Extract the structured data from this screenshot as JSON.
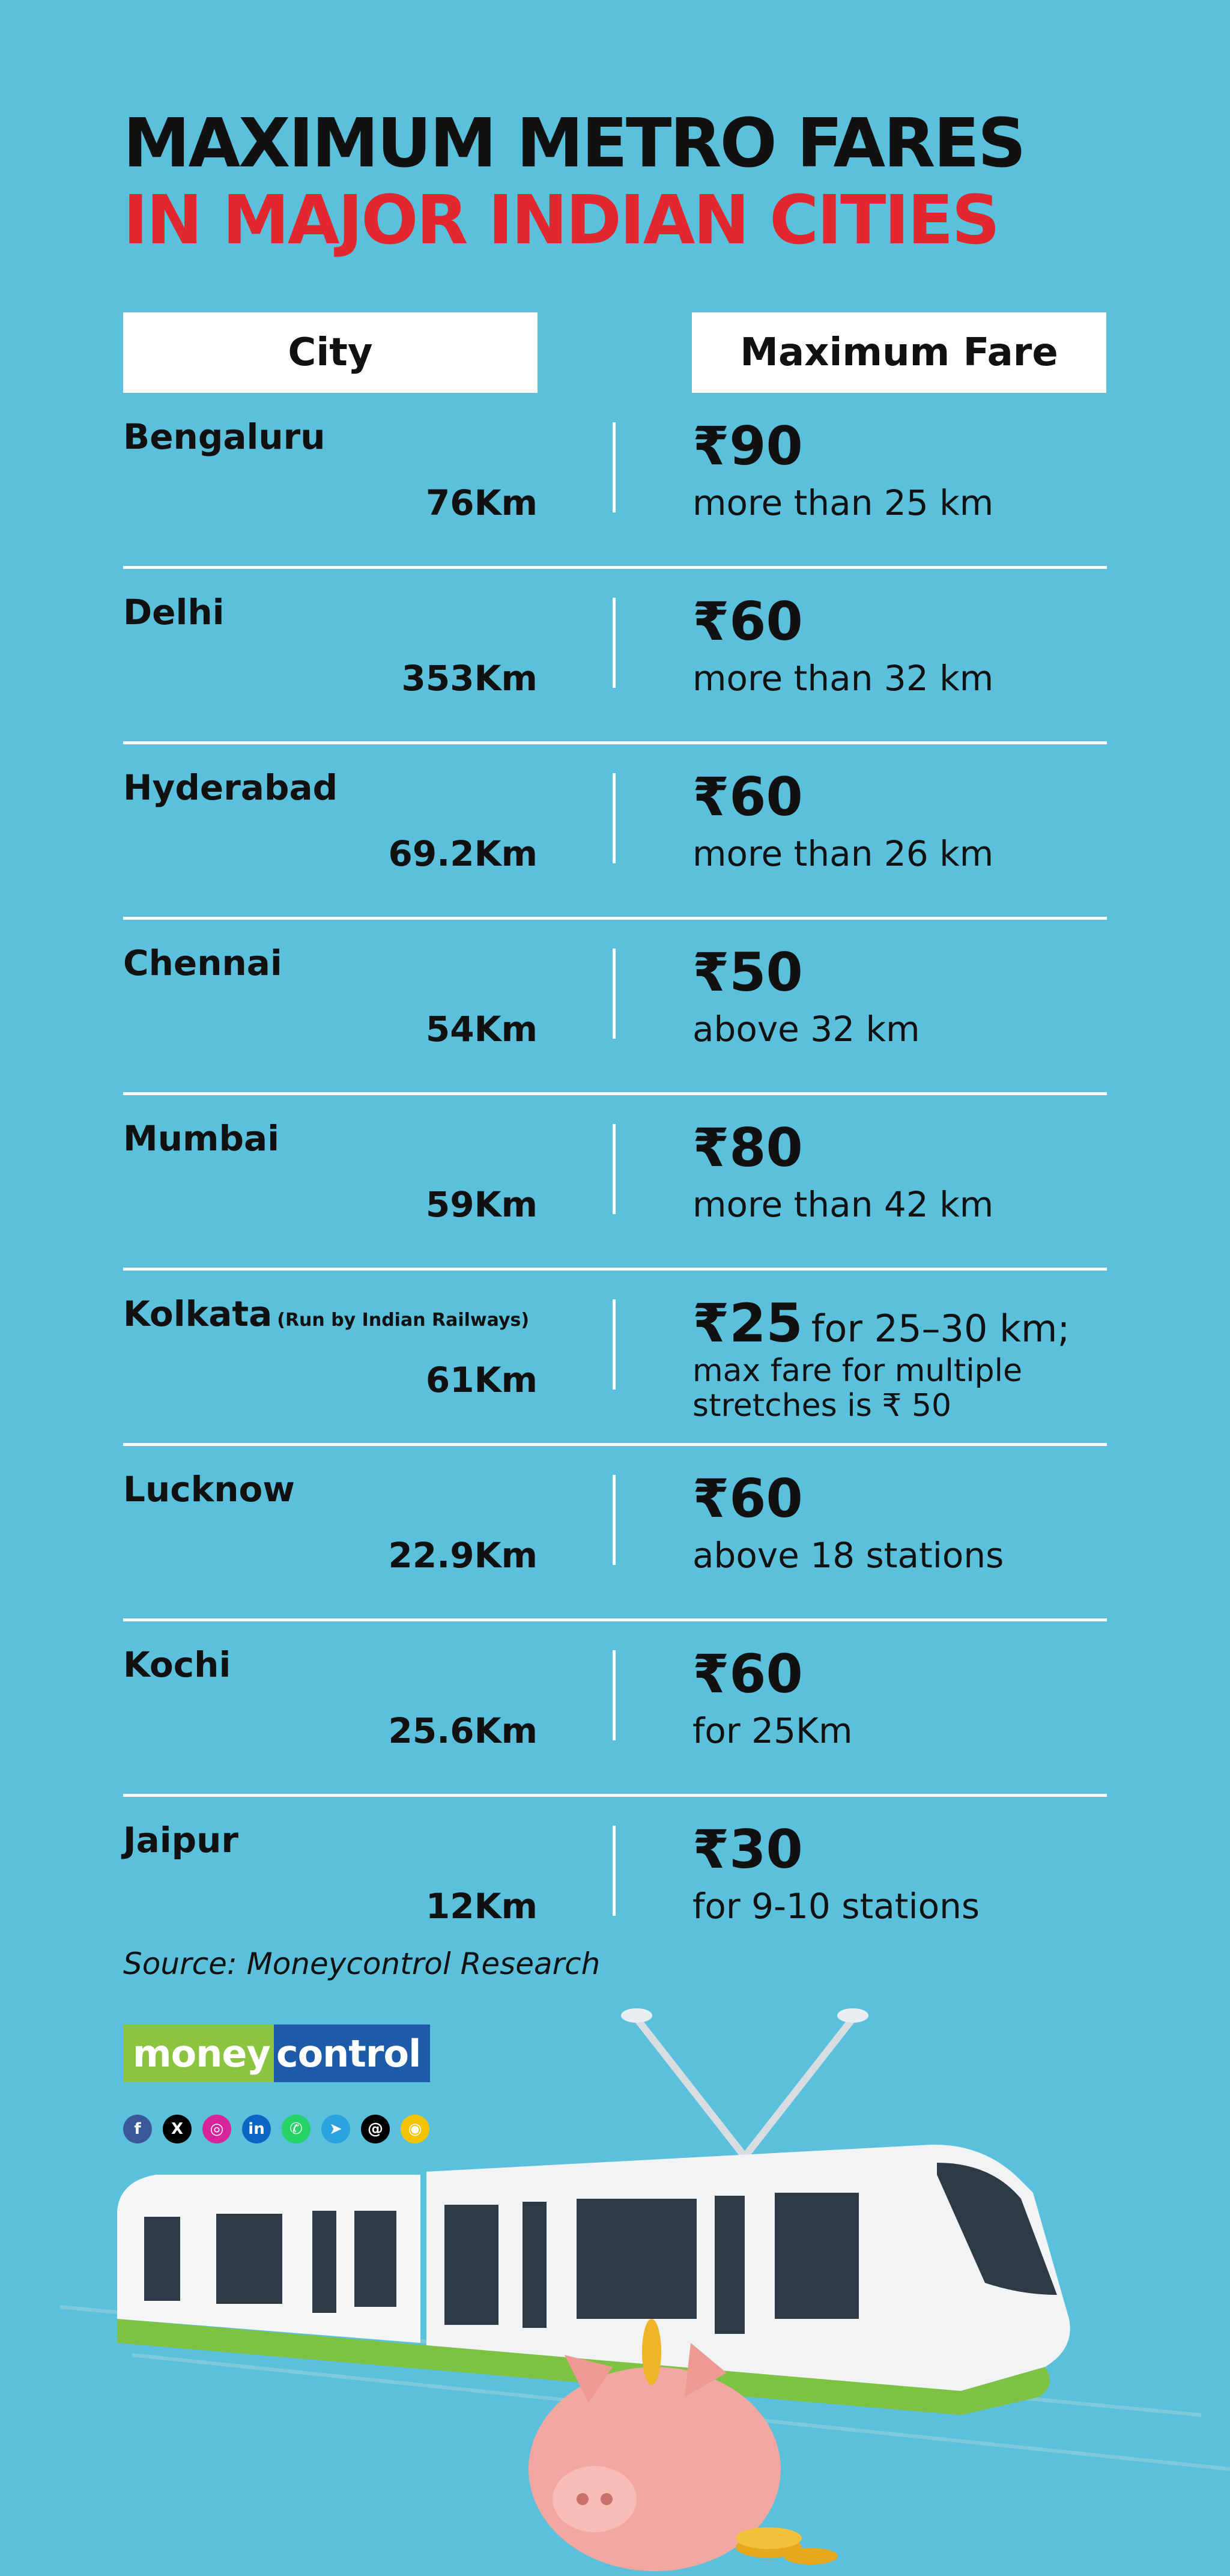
{
  "title": {
    "line1": "MAXIMUM METRO FARES",
    "line2": "IN MAJOR INDIAN CITIES"
  },
  "headers": {
    "city": "City",
    "fare": "Maximum Fare"
  },
  "rows": [
    {
      "city": "Bengaluru",
      "note": "",
      "km": "76Km",
      "fare": "₹90",
      "fare_suffix": "",
      "desc": "more than 25 km",
      "desc2": ""
    },
    {
      "city": "Delhi",
      "note": "",
      "km": "353Km",
      "fare": "₹60",
      "fare_suffix": "",
      "desc": "more than 32 km",
      "desc2": ""
    },
    {
      "city": "Hyderabad",
      "note": "",
      "km": "69.2Km",
      "fare": "₹60",
      "fare_suffix": "",
      "desc": "more than 26 km",
      "desc2": ""
    },
    {
      "city": "Chennai",
      "note": "",
      "km": "54Km",
      "fare": "₹50",
      "fare_suffix": "",
      "desc": "above 32 km",
      "desc2": ""
    },
    {
      "city": "Mumbai",
      "note": "",
      "km": "59Km",
      "fare": "₹80",
      "fare_suffix": "",
      "desc": "more than 42 km",
      "desc2": ""
    },
    {
      "city": "Kolkata",
      "note": "(Run by Indian Railways)",
      "km": "61Km",
      "fare": "₹25",
      "fare_suffix": "for 25–30 km;",
      "desc": "max fare for multiple",
      "desc2": "stretches is ₹ 50"
    },
    {
      "city": "Lucknow",
      "note": "",
      "km": "22.9Km",
      "fare": "₹60",
      "fare_suffix": "",
      "desc": "above 18 stations",
      "desc2": ""
    },
    {
      "city": "Kochi",
      "note": "",
      "km": "25.6Km",
      "fare": "₹60",
      "fare_suffix": "",
      "desc": "for 25Km",
      "desc2": ""
    },
    {
      "city": "Jaipur",
      "note": "",
      "km": "12Km",
      "fare": "₹30",
      "fare_suffix": "",
      "desc": "for 9-10 stations",
      "desc2": ""
    }
  ],
  "source": "Source: Moneycontrol Research",
  "logo": {
    "part1": "money",
    "part2": "control"
  },
  "socials": [
    {
      "icon": "facebook-icon",
      "glyph": "f",
      "color": "#3b5998"
    },
    {
      "icon": "x-icon",
      "glyph": "X",
      "color": "#000000"
    },
    {
      "icon": "instagram-icon",
      "glyph": "◎",
      "color": "#d6249f"
    },
    {
      "icon": "linkedin-icon",
      "glyph": "in",
      "color": "#0a66c2"
    },
    {
      "icon": "whatsapp-icon",
      "glyph": "✆",
      "color": "#25d366"
    },
    {
      "icon": "telegram-icon",
      "glyph": "➤",
      "color": "#2aa3df"
    },
    {
      "icon": "threads-icon",
      "glyph": "@",
      "color": "#000000"
    },
    {
      "icon": "snapchat-icon",
      "glyph": "◉",
      "color": "#f5c400"
    }
  ]
}
